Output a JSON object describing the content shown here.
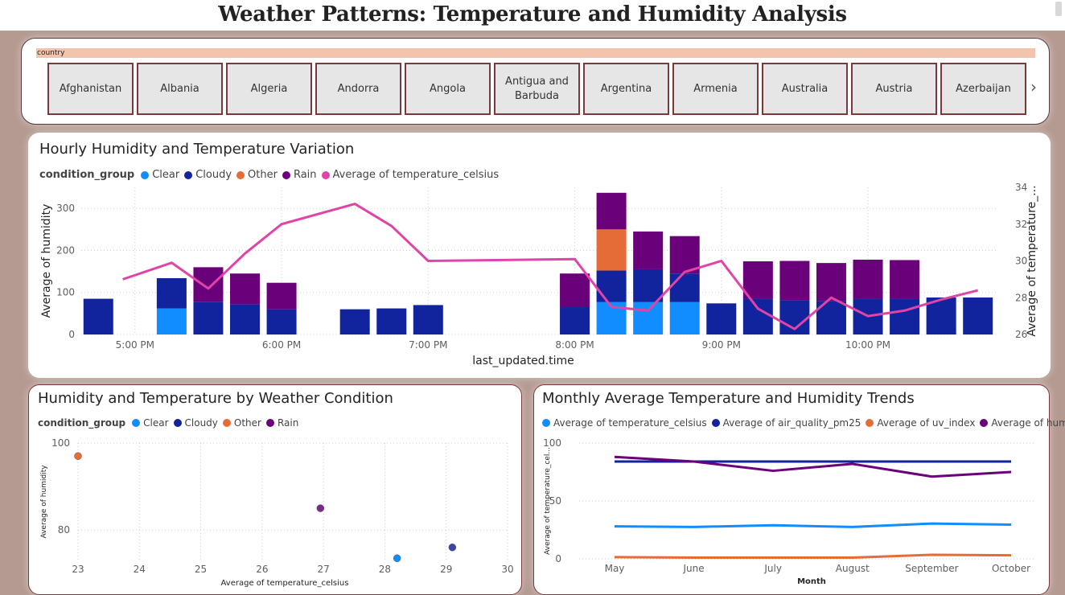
{
  "page_title": "Weather Patterns: Temperature and Humidity Analysis",
  "slicer": {
    "header": "country",
    "countries": [
      "Afghanistan",
      "Albania",
      "Algeria",
      "Andorra",
      "Angola",
      "Antigua and Barbuda",
      "Argentina",
      "Armenia",
      "Australia",
      "Austria",
      "Azerbaijan"
    ],
    "next_icon": "chevron-right-icon"
  },
  "colors": {
    "clear": "#118dff",
    "cloudy": "#12239e",
    "other": "#e66c37",
    "rain": "#6b007b",
    "temp_line": "#e044a7",
    "temp_monthly": "#118dff"
  },
  "hourly": {
    "title": "Hourly Humidity and Temperature Variation",
    "legend_title": "condition_group",
    "legend": [
      "Clear",
      "Cloudy",
      "Other",
      "Rain",
      "Average of temperature_celsius"
    ]
  },
  "scatter": {
    "title": "Humidity and Temperature by Weather Condition",
    "legend_title": "condition_group",
    "legend": [
      "Clear",
      "Cloudy",
      "Other",
      "Rain"
    ]
  },
  "monthly": {
    "title": "Monthly Average Temperature and Humidity Trends",
    "legend": [
      "Average of temperature_celsius",
      "Average of air_quality_pm25",
      "Average of uv_index",
      "Average of humidity"
    ]
  },
  "chart_data": [
    {
      "type": "bar",
      "title": "Hourly Humidity and Temperature Variation",
      "xlabel": "last_updated.time",
      "ylabel": "Average of humidity",
      "y2label": "Average of temperature_...",
      "ylim": [
        0,
        350
      ],
      "y2lim": [
        26,
        34
      ],
      "yticks": [
        0,
        100,
        200,
        300
      ],
      "y2ticks": [
        26,
        28,
        30,
        32,
        34
      ],
      "xticks": [
        "5:00 PM",
        "6:00 PM",
        "7:00 PM",
        "8:00 PM",
        "9:00 PM",
        "10:00 PM"
      ],
      "stacked": true,
      "grid": true,
      "legend_position": "top-left",
      "bars": [
        {
          "t": "4:45 PM",
          "clear": 0,
          "cloudy": 85,
          "other": 0,
          "rain": 0
        },
        {
          "t": "5:15 PM",
          "clear": 62,
          "cloudy": 72,
          "other": 0,
          "rain": 0
        },
        {
          "t": "5:30 PM",
          "clear": 0,
          "cloudy": 78,
          "other": 0,
          "rain": 82
        },
        {
          "t": "5:45 PM",
          "clear": 0,
          "cloudy": 72,
          "other": 0,
          "rain": 73
        },
        {
          "t": "6:00 PM",
          "clear": 0,
          "cloudy": 60,
          "other": 0,
          "rain": 63
        },
        {
          "t": "6:30 PM",
          "clear": 0,
          "cloudy": 60,
          "other": 0,
          "rain": 0
        },
        {
          "t": "6:45 PM",
          "clear": 0,
          "cloudy": 62,
          "other": 0,
          "rain": 0
        },
        {
          "t": "7:00 PM",
          "clear": 0,
          "cloudy": 70,
          "other": 0,
          "rain": 0
        },
        {
          "t": "8:00 PM",
          "clear": 0,
          "cloudy": 65,
          "other": 0,
          "rain": 80
        },
        {
          "t": "8:15 PM",
          "clear": 77,
          "cloudy": 75,
          "other": 98,
          "rain": 87
        },
        {
          "t": "8:30 PM",
          "clear": 77,
          "cloudy": 78,
          "other": 0,
          "rain": 90
        },
        {
          "t": "8:45 PM",
          "clear": 77,
          "cloudy": 68,
          "other": 0,
          "rain": 89
        },
        {
          "t": "9:00 PM",
          "clear": 0,
          "cloudy": 74,
          "other": 0,
          "rain": 0
        },
        {
          "t": "9:15 PM",
          "clear": 0,
          "cloudy": 85,
          "other": 0,
          "rain": 89
        },
        {
          "t": "9:30 PM",
          "clear": 0,
          "cloudy": 82,
          "other": 0,
          "rain": 93
        },
        {
          "t": "9:45 PM",
          "clear": 0,
          "cloudy": 80,
          "other": 0,
          "rain": 90
        },
        {
          "t": "10:00 PM",
          "clear": 0,
          "cloudy": 85,
          "other": 0,
          "rain": 93
        },
        {
          "t": "10:15 PM",
          "clear": 0,
          "cloudy": 85,
          "other": 0,
          "rain": 92
        },
        {
          "t": "10:30 PM",
          "clear": 0,
          "cloudy": 88,
          "other": 0,
          "rain": 0
        },
        {
          "t": "10:45 PM",
          "clear": 0,
          "cloudy": 88,
          "other": 0,
          "rain": 0
        }
      ],
      "temperature_line": [
        {
          "t": "4:55 PM",
          "v": 29.0
        },
        {
          "t": "5:15 PM",
          "v": 29.9
        },
        {
          "t": "5:30 PM",
          "v": 28.5
        },
        {
          "t": "5:45 PM",
          "v": 30.4
        },
        {
          "t": "6:00 PM",
          "v": 32.0
        },
        {
          "t": "6:30 PM",
          "v": 33.1
        },
        {
          "t": "6:45 PM",
          "v": 31.9
        },
        {
          "t": "7:00 PM",
          "v": 30.0
        },
        {
          "t": "8:00 PM",
          "v": 30.1
        },
        {
          "t": "8:15 PM",
          "v": 27.5
        },
        {
          "t": "8:30 PM",
          "v": 27.3
        },
        {
          "t": "8:45 PM",
          "v": 29.4
        },
        {
          "t": "9:00 PM",
          "v": 30.0
        },
        {
          "t": "9:15 PM",
          "v": 27.4
        },
        {
          "t": "9:30 PM",
          "v": 26.3
        },
        {
          "t": "9:45 PM",
          "v": 28.0
        },
        {
          "t": "10:00 PM",
          "v": 27.0
        },
        {
          "t": "10:15 PM",
          "v": 27.3
        },
        {
          "t": "10:30 PM",
          "v": 27.9
        },
        {
          "t": "10:45 PM",
          "v": 28.4
        }
      ]
    },
    {
      "type": "scatter",
      "title": "Humidity and Temperature by Weather Condition",
      "xlabel": "Average of temperature_celsius",
      "ylabel": "Average of humidity",
      "xlim": [
        23,
        30
      ],
      "ylim": [
        73,
        100
      ],
      "xticks": [
        23,
        24,
        25,
        26,
        27,
        28,
        29,
        30
      ],
      "yticks": [
        80,
        100
      ],
      "grid": true,
      "points": [
        {
          "series": "Other",
          "x": 23.0,
          "y": 97
        },
        {
          "series": "Rain",
          "x": 26.95,
          "y": 85
        },
        {
          "series": "Cloudy",
          "x": 29.1,
          "y": 76
        },
        {
          "series": "Clear",
          "x": 28.2,
          "y": 73.5
        }
      ]
    },
    {
      "type": "line",
      "title": "Monthly Average Temperature and Humidity Trends",
      "xlabel": "Month",
      "ylabel": "Average of temperature_cel...",
      "categories": [
        "May",
        "June",
        "July",
        "August",
        "September",
        "October"
      ],
      "ylim": [
        0,
        100
      ],
      "yticks": [
        0,
        50,
        100
      ],
      "grid": true,
      "series": [
        {
          "name": "Average of temperature_celsius",
          "values": [
            28,
            27.5,
            29,
            27.5,
            30.5,
            29.5
          ]
        },
        {
          "name": "Average of air_quality_pm25",
          "values": [
            84,
            84,
            84,
            84,
            84,
            84
          ]
        },
        {
          "name": "Average of uv_index",
          "values": [
            1.5,
            1,
            1,
            1,
            3.5,
            3
          ]
        },
        {
          "name": "Average of humidity",
          "values": [
            88,
            84,
            76,
            82,
            71,
            75
          ]
        }
      ]
    }
  ]
}
